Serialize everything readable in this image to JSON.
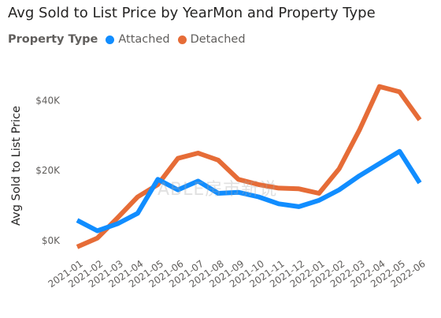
{
  "chart_data": {
    "type": "line",
    "title": "Avg Sold to List Price by YearMon and Property Type",
    "xlabel": "",
    "ylabel": "Avg Sold to List Price",
    "legend_title": "Property Type",
    "legend_position": "top-left",
    "grid": false,
    "categories": [
      "2021-01",
      "2021-02",
      "2021-03",
      "2021-04",
      "2021-05",
      "2021-06",
      "2021-07",
      "2021-08",
      "2021-09",
      "2021-10",
      "2021-11",
      "2021-12",
      "2022-01",
      "2022-02",
      "2022-03",
      "2022-04",
      "2022-05",
      "2022-06"
    ],
    "ylim": [
      -2500,
      48000
    ],
    "yticks": [
      {
        "value": 0,
        "label": "$0K"
      },
      {
        "value": 20000,
        "label": "$20K"
      },
      {
        "value": 40000,
        "label": "$40K"
      }
    ],
    "series": [
      {
        "name": "Attached",
        "color": "#118DFF",
        "values": [
          5800,
          2800,
          4800,
          7800,
          17500,
          14500,
          17000,
          13500,
          13800,
          12500,
          10500,
          9700,
          11500,
          14500,
          18500,
          22000,
          25500,
          16500
        ]
      },
      {
        "name": "Detached",
        "color": "#E66C37",
        "values": [
          -1800,
          700,
          6500,
          12500,
          16000,
          23500,
          25000,
          23000,
          17500,
          16000,
          15000,
          14800,
          13500,
          20500,
          31500,
          44000,
          42500,
          34500
        ]
      }
    ]
  },
  "watermark": "ABLE房市新说"
}
